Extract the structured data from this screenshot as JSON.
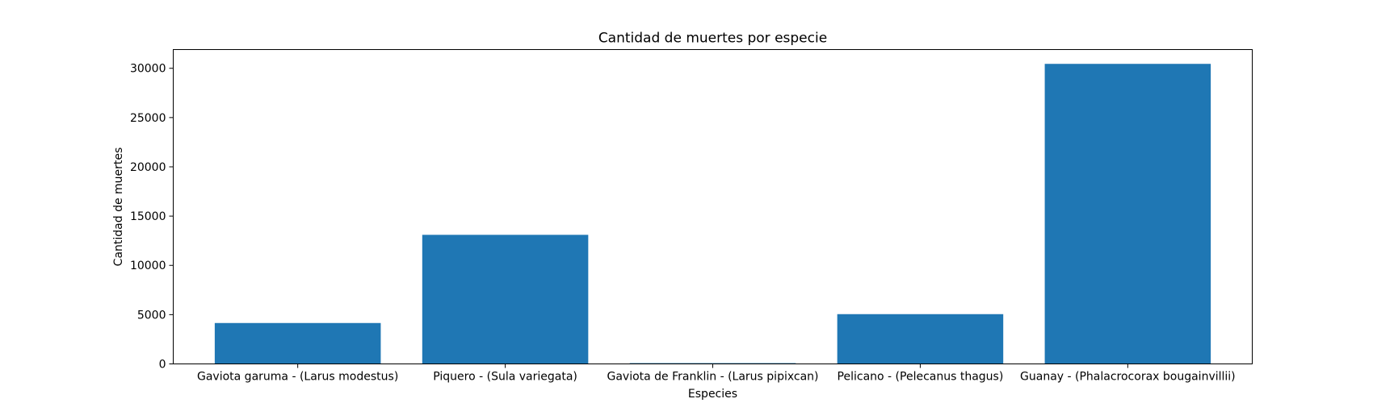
{
  "chart_data": {
    "type": "bar",
    "title": "Cantidad de muertes por especie",
    "xlabel": "Especies",
    "ylabel": "Cantidad de muertes",
    "categories": [
      "Gaviota garuma - (Larus modestus)",
      "Piquero - (Sula variegata)",
      "Gaviota de Franklin - (Larus pipixcan)",
      "Pelicano - (Pelecanus thagus)",
      "Guanay - (Phalacrocorax bougainvillii)"
    ],
    "values": [
      4150,
      13100,
      80,
      5050,
      30450
    ],
    "ylim": [
      0,
      31900
    ],
    "yticks": [
      0,
      5000,
      10000,
      15000,
      20000,
      25000,
      30000
    ],
    "bar_color": "#1f77b4",
    "grid": false
  }
}
